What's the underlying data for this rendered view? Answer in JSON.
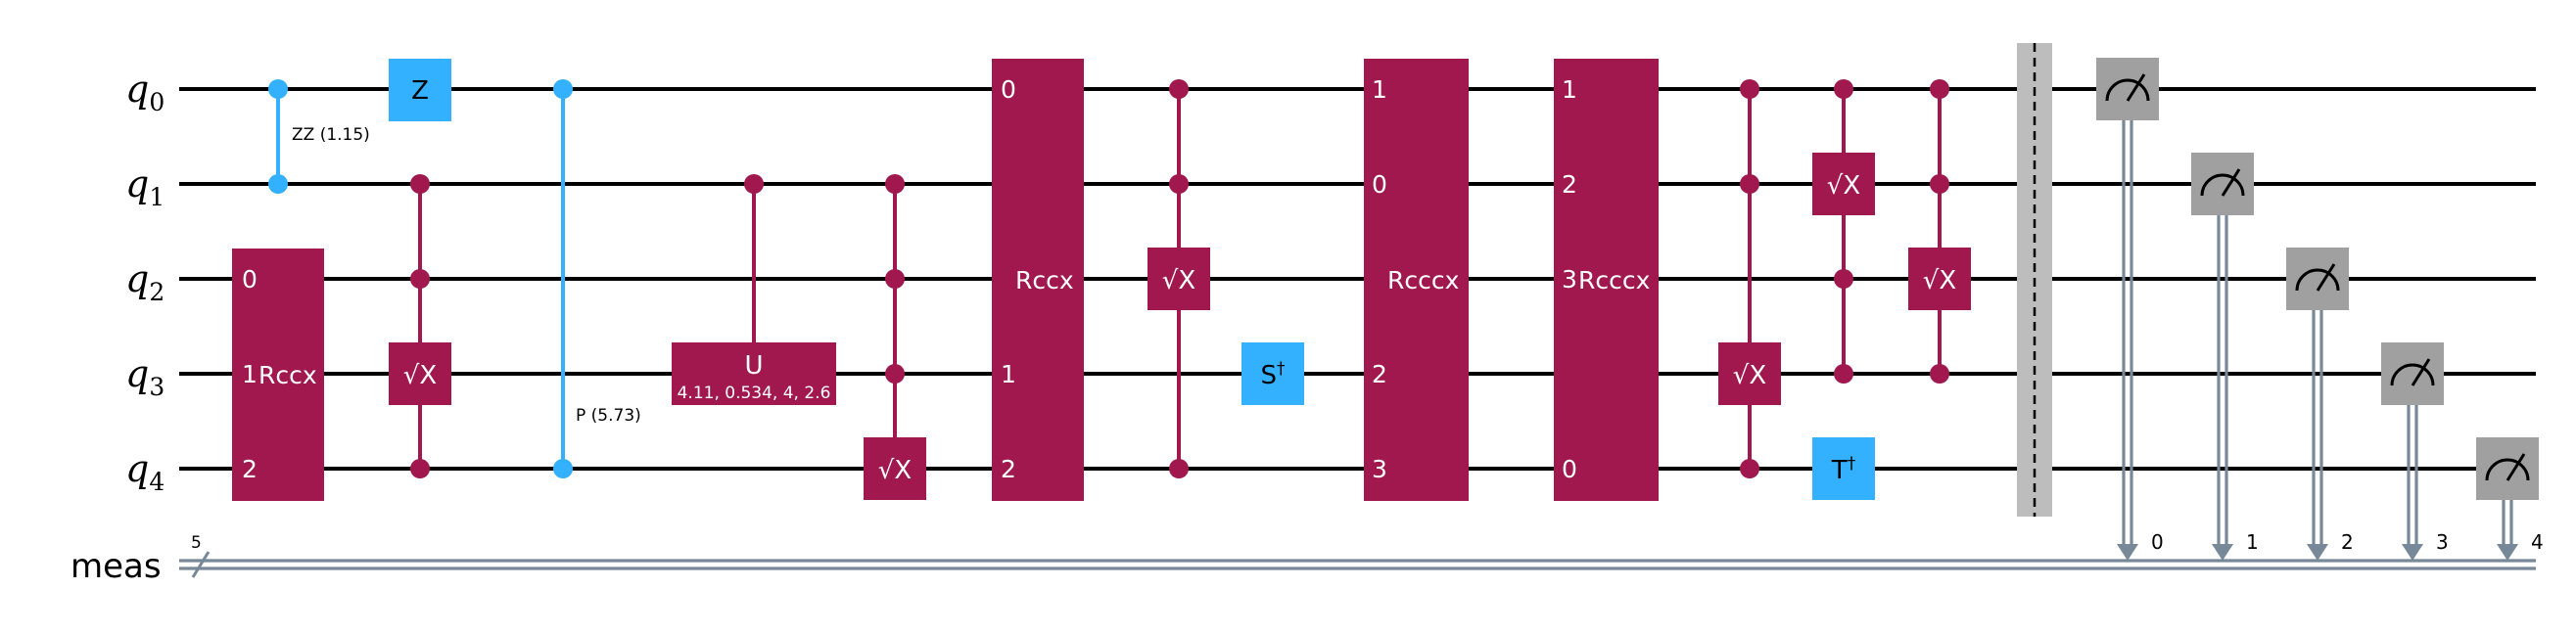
{
  "colors": {
    "magenta": "#A1184F",
    "blue": "#33B1FF",
    "measure": "#A0A0A0",
    "barrier": "#BDBDBD",
    "classical": "#778899",
    "wire": "#000000"
  },
  "qubits": [
    {
      "base": "q",
      "index": "0"
    },
    {
      "base": "q",
      "index": "1"
    },
    {
      "base": "q",
      "index": "2"
    },
    {
      "base": "q",
      "index": "3"
    },
    {
      "base": "q",
      "index": "4"
    }
  ],
  "classical": {
    "label": "meas",
    "width": "5"
  },
  "gates": {
    "zz": {
      "label": "ZZ (1.15)"
    },
    "rccx1": {
      "label": "Rccx",
      "pins": [
        "0",
        "1",
        "2"
      ]
    },
    "z": {
      "label": "Z"
    },
    "csx1": {
      "label": "√X"
    },
    "cp": {
      "label": "P (5.73)"
    },
    "cu": {
      "label": "U",
      "params": "4.11, 0.534, 4, 2.6"
    },
    "csx2": {
      "label": "√X"
    },
    "rccx2": {
      "label": "Rccx",
      "pins": [
        "0",
        "1",
        "2"
      ]
    },
    "csx3": {
      "label": "√X"
    },
    "sdg": {
      "label": "S",
      "sup": "†"
    },
    "rcccx1": {
      "label": "Rcccx",
      "pins": [
        "1",
        "0",
        "2",
        "3"
      ]
    },
    "rcccx2": {
      "label": "Rcccx",
      "pins": [
        "1",
        "2",
        "3",
        "0"
      ]
    },
    "csx4": {
      "label": "√X"
    },
    "csx5": {
      "label": "√X"
    },
    "tdg": {
      "label": "T",
      "sup": "†"
    },
    "csx6": {
      "label": "√X"
    }
  },
  "measurements": [
    {
      "qubit": 0,
      "bit": "0"
    },
    {
      "qubit": 1,
      "bit": "1"
    },
    {
      "qubit": 2,
      "bit": "2"
    },
    {
      "qubit": 3,
      "bit": "3"
    },
    {
      "qubit": 4,
      "bit": "4"
    }
  ]
}
